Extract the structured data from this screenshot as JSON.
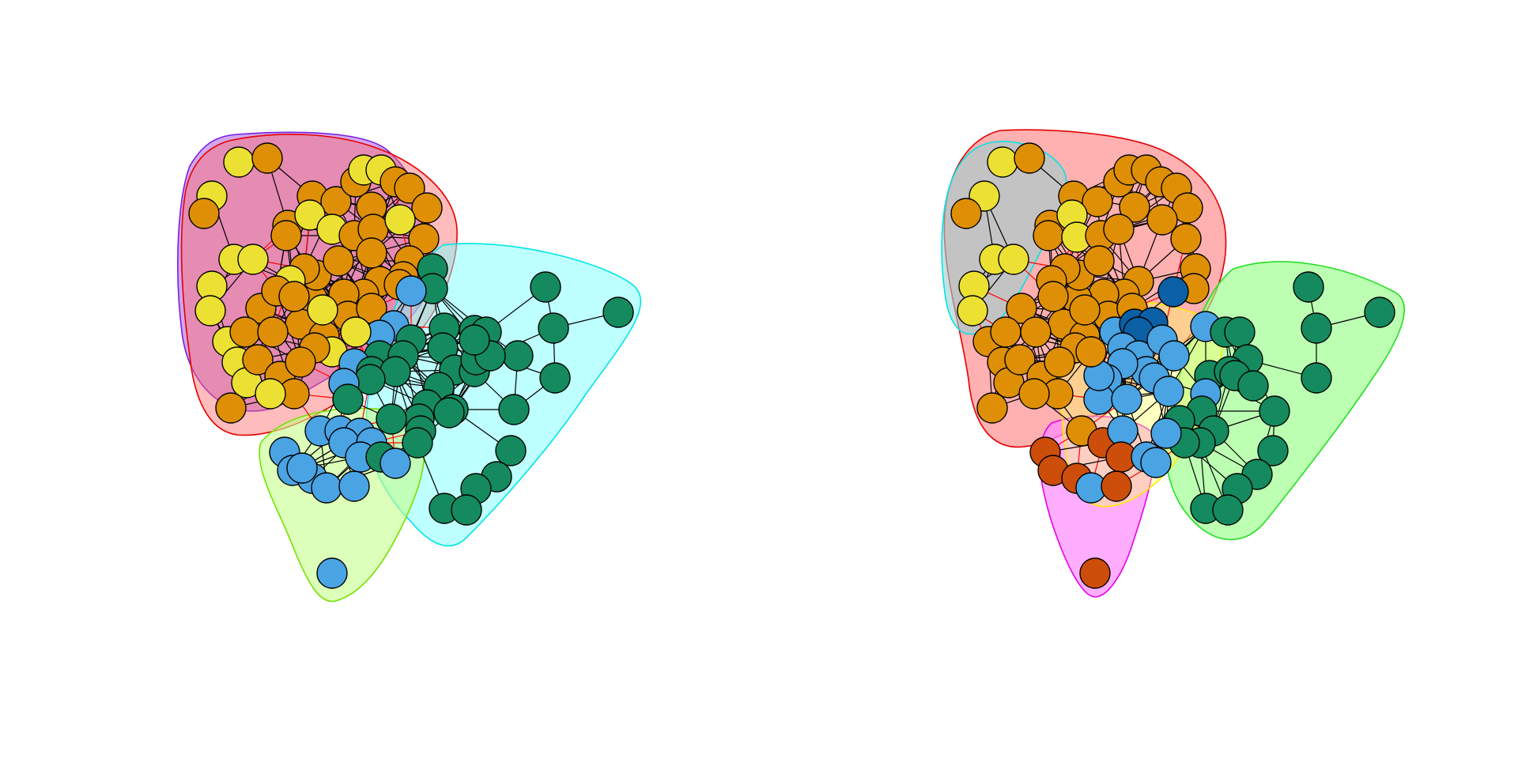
{
  "colors": {
    "background": "#ffffff",
    "node_yellow": "#ece133",
    "node_orange": "#de8f05",
    "node_green": "#148a5e",
    "node_blue": "#4aa3e3",
    "node_rust": "#cc4e0a",
    "node_darkblue": "#0b5fa5",
    "edge_within": "#000000",
    "edge_between": "#ff0000"
  },
  "panels": [
    {
      "name": "left-network",
      "groups": [
        {
          "name": "purple-hull",
          "fill": "#9a3bd6",
          "stroke": "#7a1fe6",
          "opacity": 0.45
        },
        {
          "name": "red-hull",
          "fill": "#ff6b6b",
          "stroke": "#e60000",
          "opacity": 0.45
        },
        {
          "name": "cyan-hull",
          "fill": "#7dffff",
          "stroke": "#00e5e5",
          "opacity": 0.5
        },
        {
          "name": "lime-hull",
          "fill": "#c4ff8a",
          "stroke": "#77e000",
          "opacity": 0.6
        }
      ]
    },
    {
      "name": "right-network",
      "groups": [
        {
          "name": "red-hull",
          "fill": "#ff7070",
          "stroke": "#e60000",
          "opacity": 0.55
        },
        {
          "name": "cyan-hull",
          "fill": "#9bd0d0",
          "stroke": "#00e5e5",
          "opacity": 0.6
        },
        {
          "name": "green-hull",
          "fill": "#98ff8a",
          "stroke": "#22e022",
          "opacity": 0.65
        },
        {
          "name": "magenta-hull",
          "fill": "#ff8cff",
          "stroke": "#e600e6",
          "opacity": 0.7
        },
        {
          "name": "yellow-hull",
          "fill": "#ffff66",
          "stroke": "#ffea00",
          "opacity": 0.4
        }
      ]
    }
  ]
}
